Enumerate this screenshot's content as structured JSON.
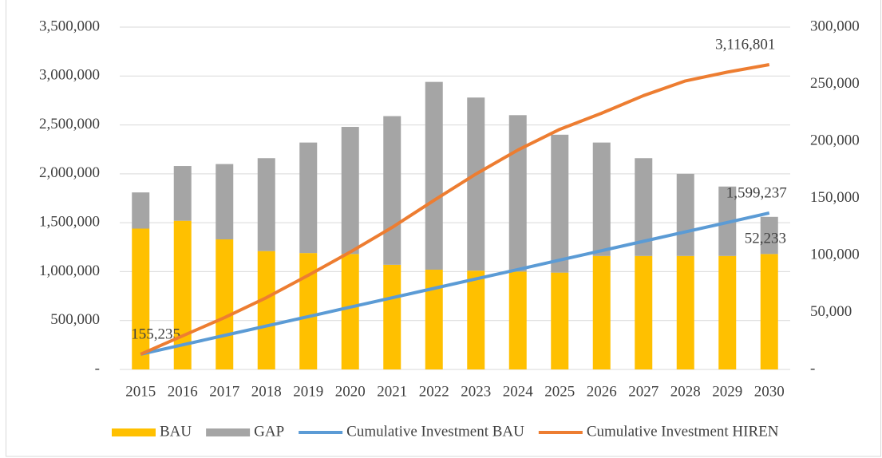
{
  "chart_data": {
    "type": "bar",
    "categories": [
      "2015",
      "2016",
      "2017",
      "2018",
      "2019",
      "2020",
      "2021",
      "2022",
      "2023",
      "2024",
      "2025",
      "2026",
      "2027",
      "2028",
      "2029",
      "2030"
    ],
    "series": [
      {
        "name": "BAU",
        "type": "bar",
        "color": "#ffc000",
        "values": [
          1440000,
          1520000,
          1330000,
          1210000,
          1190000,
          1180000,
          1070000,
          1020000,
          1010000,
          1000000,
          990000,
          1160000,
          1160000,
          1160000,
          1160000,
          1180000
        ]
      },
      {
        "name": "GAP",
        "type": "bar",
        "color": "#a5a5a5",
        "values": [
          370000,
          560000,
          770000,
          950000,
          1130000,
          1300000,
          1520000,
          1920000,
          1770000,
          1600000,
          1410000,
          1160000,
          1000000,
          840000,
          710000,
          380000
        ]
      },
      {
        "name": "Cumulative Investment BAU",
        "type": "line",
        "color": "#5b9bd5",
        "values": [
          155235,
          251502,
          347769,
          444036,
          540304,
          636571,
          732838,
          829105,
          925372,
          1021639,
          1117906,
          1214174,
          1310441,
          1406708,
          1502975,
          1599237
        ],
        "value_labels": [
          "155,235",
          null,
          null,
          null,
          null,
          null,
          null,
          null,
          null,
          null,
          null,
          null,
          null,
          null,
          null,
          "1,599,237"
        ]
      },
      {
        "name": "Cumulative Investment HIREN",
        "type": "line",
        "color": "#ed7d31",
        "values": [
          155235,
          343000,
          530000,
          734000,
          963000,
          1200000,
          1452000,
          1729000,
          1998000,
          2243000,
          2455000,
          2620000,
          2800000,
          2950000,
          3040000,
          3116801
        ],
        "value_labels": [
          null,
          null,
          null,
          null,
          null,
          null,
          null,
          null,
          null,
          null,
          null,
          null,
          null,
          null,
          null,
          "3,116,801"
        ]
      }
    ],
    "annotations": [
      "52,233"
    ],
    "ylim": [
      0,
      3500000
    ],
    "yticks": [
      {
        "value": 0,
        "label": "-"
      },
      {
        "value": 500000,
        "label": "500,000"
      },
      {
        "value": 1000000,
        "label": "1,000,000"
      },
      {
        "value": 1500000,
        "label": "1,500,000"
      },
      {
        "value": 2000000,
        "label": "2,000,000"
      },
      {
        "value": 2500000,
        "label": "2,500,000"
      },
      {
        "value": 3000000,
        "label": "3,000,000"
      },
      {
        "value": 3500000,
        "label": "3,500,000"
      }
    ],
    "y2lim": [
      0,
      300000
    ],
    "y2ticks": [
      {
        "value": 0,
        "label": "-"
      },
      {
        "value": 50000,
        "label": "50,000"
      },
      {
        "value": 100000,
        "label": "100,000"
      },
      {
        "value": 150000,
        "label": "150,000"
      },
      {
        "value": 200000,
        "label": "200,000"
      },
      {
        "value": 250000,
        "label": "250,000"
      },
      {
        "value": 300000,
        "label": "300,000"
      }
    ],
    "grid": true,
    "legend": "bottom"
  }
}
